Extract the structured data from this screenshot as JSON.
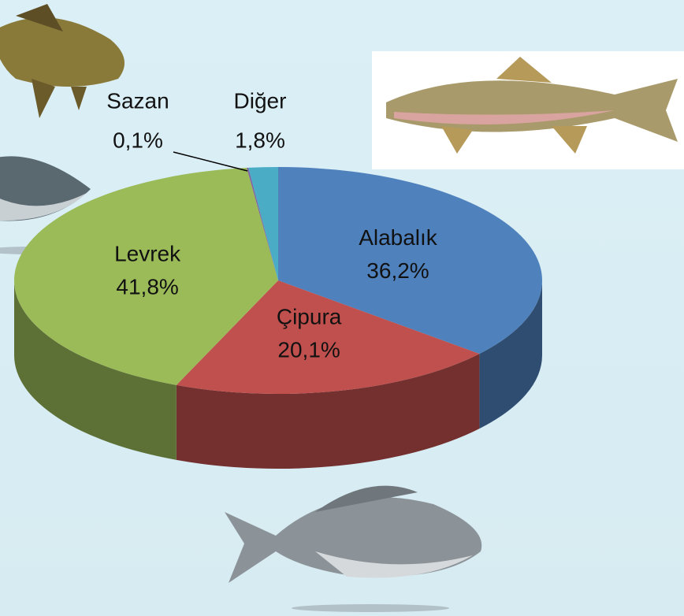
{
  "chart_data": {
    "type": "pie",
    "categories": [
      "Alabalık",
      "Çipura",
      "Levrek",
      "Sazan",
      "Diğer"
    ],
    "values": [
      36.2,
      20.1,
      41.8,
      0.1,
      1.8
    ],
    "value_labels": [
      "36,2%",
      "20,1%",
      "41,8%",
      "0,1%",
      "1,8%"
    ],
    "colors": [
      "#4f81bd",
      "#c0504d",
      "#9bbb59",
      "#8064a2",
      "#4bacc6"
    ]
  }
}
